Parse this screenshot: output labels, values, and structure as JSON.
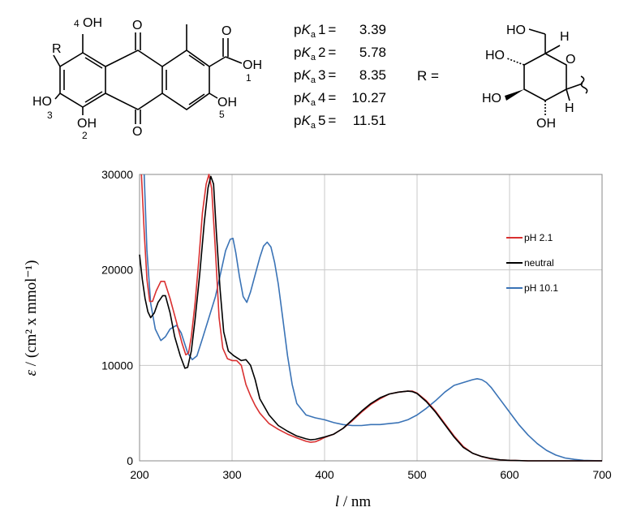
{
  "structure": {
    "anthraquinone_labels": {
      "r": "R",
      "oh_4": "OH",
      "num_4": "4",
      "oh_3": "HO",
      "num_3": "3",
      "oh_2": "OH",
      "num_2": "2",
      "oh_5": "OH",
      "num_5": "5",
      "oh_1": "OH",
      "num_1": "1",
      "o_top": "O",
      "o_bottom": "O",
      "o_acid": "O"
    },
    "r_equals": "R =",
    "sugar_labels": {
      "ho_ch2": "HO",
      "h_top": "H",
      "ho_left": "HO",
      "o_ring": "O",
      "ho_bottom_left": "HO",
      "h_right": "H",
      "oh_bottom": "OH"
    }
  },
  "pka": [
    {
      "prefix": "p",
      "k": "K",
      "sub": "a",
      "num": "1",
      "value": "3.39"
    },
    {
      "prefix": "p",
      "k": "K",
      "sub": "a",
      "num": "2",
      "value": "5.78"
    },
    {
      "prefix": "p",
      "k": "K",
      "sub": "a",
      "num": "3",
      "value": "8.35"
    },
    {
      "prefix": "p",
      "k": "K",
      "sub": "a",
      "num": "4",
      "value": "10.27"
    },
    {
      "prefix": "p",
      "k": "K",
      "sub": "a",
      "num": "5",
      "value": "11.51"
    }
  ],
  "chart_data": {
    "type": "line",
    "xlabel_sym": "l",
    "xlabel_unit": " / nm",
    "ylabel_sym": "ε",
    "ylabel_unit": " / (cm² x mmol⁻¹)",
    "xlim": [
      200,
      700
    ],
    "ylim": [
      0,
      30000
    ],
    "xticks": [
      200,
      300,
      400,
      500,
      600,
      700
    ],
    "yticks": [
      0,
      10000,
      20000,
      30000
    ],
    "ytick_labels": [
      "0",
      "10000",
      "20000",
      "30000"
    ],
    "grid": true,
    "legend_position": "right",
    "series": [
      {
        "name": "pH 2.1",
        "color": "#d93030",
        "points": [
          [
            202,
            30000
          ],
          [
            205,
            24000
          ],
          [
            208,
            19000
          ],
          [
            211,
            16700
          ],
          [
            214,
            16700
          ],
          [
            218,
            17800
          ],
          [
            223,
            18800
          ],
          [
            227,
            18800
          ],
          [
            233,
            17000
          ],
          [
            240,
            14500
          ],
          [
            246,
            12300
          ],
          [
            250,
            11100
          ],
          [
            253,
            11300
          ],
          [
            256,
            13000
          ],
          [
            260,
            16500
          ],
          [
            264,
            21000
          ],
          [
            268,
            26000
          ],
          [
            272,
            29000
          ],
          [
            275,
            30000
          ],
          [
            278,
            28500
          ],
          [
            282,
            22000
          ],
          [
            286,
            15000
          ],
          [
            290,
            11800
          ],
          [
            295,
            10700
          ],
          [
            300,
            10500
          ],
          [
            305,
            10500
          ],
          [
            310,
            10000
          ],
          [
            315,
            8000
          ],
          [
            320,
            6800
          ],
          [
            325,
            5800
          ],
          [
            330,
            5000
          ],
          [
            340,
            3900
          ],
          [
            350,
            3300
          ],
          [
            360,
            2800
          ],
          [
            370,
            2400
          ],
          [
            380,
            2050
          ],
          [
            385,
            1950
          ],
          [
            390,
            2000
          ],
          [
            395,
            2200
          ],
          [
            400,
            2450
          ],
          [
            410,
            2800
          ],
          [
            420,
            3400
          ],
          [
            430,
            4200
          ],
          [
            440,
            5100
          ],
          [
            450,
            5900
          ],
          [
            460,
            6500
          ],
          [
            470,
            7000
          ],
          [
            480,
            7200
          ],
          [
            490,
            7300
          ],
          [
            495,
            7300
          ],
          [
            500,
            7100
          ],
          [
            510,
            6300
          ],
          [
            520,
            5200
          ],
          [
            530,
            3900
          ],
          [
            540,
            2600
          ],
          [
            550,
            1500
          ],
          [
            560,
            800
          ],
          [
            570,
            450
          ],
          [
            580,
            200
          ],
          [
            590,
            100
          ],
          [
            600,
            50
          ],
          [
            620,
            0
          ],
          [
            700,
            0
          ]
        ]
      },
      {
        "name": "neutral",
        "color": "#000000",
        "points": [
          [
            200,
            21600
          ],
          [
            203,
            19000
          ],
          [
            206,
            17000
          ],
          [
            209,
            15600
          ],
          [
            212,
            15000
          ],
          [
            216,
            15500
          ],
          [
            220,
            16600
          ],
          [
            225,
            17300
          ],
          [
            228,
            17300
          ],
          [
            233,
            15500
          ],
          [
            238,
            13000
          ],
          [
            244,
            11000
          ],
          [
            249,
            9700
          ],
          [
            252,
            9800
          ],
          [
            256,
            11500
          ],
          [
            260,
            14800
          ],
          [
            265,
            19500
          ],
          [
            270,
            25000
          ],
          [
            274,
            28600
          ],
          [
            277,
            29800
          ],
          [
            280,
            29000
          ],
          [
            283,
            24000
          ],
          [
            287,
            18000
          ],
          [
            291,
            13500
          ],
          [
            296,
            11500
          ],
          [
            302,
            11000
          ],
          [
            310,
            10500
          ],
          [
            315,
            10600
          ],
          [
            320,
            10000
          ],
          [
            325,
            8500
          ],
          [
            330,
            6500
          ],
          [
            340,
            4800
          ],
          [
            350,
            3700
          ],
          [
            360,
            3100
          ],
          [
            370,
            2600
          ],
          [
            380,
            2300
          ],
          [
            385,
            2200
          ],
          [
            390,
            2250
          ],
          [
            400,
            2500
          ],
          [
            410,
            2800
          ],
          [
            420,
            3400
          ],
          [
            430,
            4300
          ],
          [
            440,
            5200
          ],
          [
            450,
            6000
          ],
          [
            460,
            6600
          ],
          [
            470,
            7000
          ],
          [
            480,
            7200
          ],
          [
            490,
            7300
          ],
          [
            495,
            7250
          ],
          [
            500,
            7050
          ],
          [
            510,
            6200
          ],
          [
            520,
            5100
          ],
          [
            530,
            3800
          ],
          [
            540,
            2500
          ],
          [
            550,
            1400
          ],
          [
            560,
            800
          ],
          [
            570,
            450
          ],
          [
            580,
            250
          ],
          [
            590,
            100
          ],
          [
            600,
            50
          ],
          [
            620,
            0
          ],
          [
            700,
            0
          ]
        ]
      },
      {
        "name": "pH 10.1",
        "color": "#3a73b6",
        "points": [
          [
            205,
            30000
          ],
          [
            208,
            22000
          ],
          [
            212,
            16500
          ],
          [
            217,
            13800
          ],
          [
            223,
            12600
          ],
          [
            228,
            13000
          ],
          [
            233,
            13800
          ],
          [
            240,
            14200
          ],
          [
            245,
            13400
          ],
          [
            252,
            11300
          ],
          [
            257,
            10600
          ],
          [
            262,
            11000
          ],
          [
            268,
            12800
          ],
          [
            275,
            15000
          ],
          [
            282,
            17200
          ],
          [
            288,
            19800
          ],
          [
            293,
            22000
          ],
          [
            298,
            23200
          ],
          [
            301,
            23300
          ],
          [
            304,
            21800
          ],
          [
            308,
            19300
          ],
          [
            312,
            17200
          ],
          [
            316,
            16600
          ],
          [
            320,
            17700
          ],
          [
            325,
            19500
          ],
          [
            330,
            21300
          ],
          [
            334,
            22500
          ],
          [
            338,
            22900
          ],
          [
            342,
            22400
          ],
          [
            346,
            20800
          ],
          [
            350,
            18500
          ],
          [
            355,
            14800
          ],
          [
            360,
            11000
          ],
          [
            365,
            8000
          ],
          [
            370,
            6000
          ],
          [
            380,
            4800
          ],
          [
            390,
            4500
          ],
          [
            400,
            4300
          ],
          [
            410,
            4000
          ],
          [
            420,
            3800
          ],
          [
            430,
            3700
          ],
          [
            440,
            3700
          ],
          [
            450,
            3800
          ],
          [
            460,
            3800
          ],
          [
            470,
            3900
          ],
          [
            480,
            4000
          ],
          [
            490,
            4300
          ],
          [
            500,
            4800
          ],
          [
            510,
            5500
          ],
          [
            520,
            6300
          ],
          [
            530,
            7200
          ],
          [
            540,
            7900
          ],
          [
            550,
            8200
          ],
          [
            560,
            8500
          ],
          [
            565,
            8600
          ],
          [
            570,
            8500
          ],
          [
            575,
            8200
          ],
          [
            580,
            7700
          ],
          [
            590,
            6400
          ],
          [
            600,
            5100
          ],
          [
            610,
            3800
          ],
          [
            620,
            2700
          ],
          [
            630,
            1800
          ],
          [
            640,
            1100
          ],
          [
            650,
            600
          ],
          [
            660,
            300
          ],
          [
            670,
            150
          ],
          [
            680,
            50
          ],
          [
            700,
            0
          ]
        ]
      }
    ]
  }
}
